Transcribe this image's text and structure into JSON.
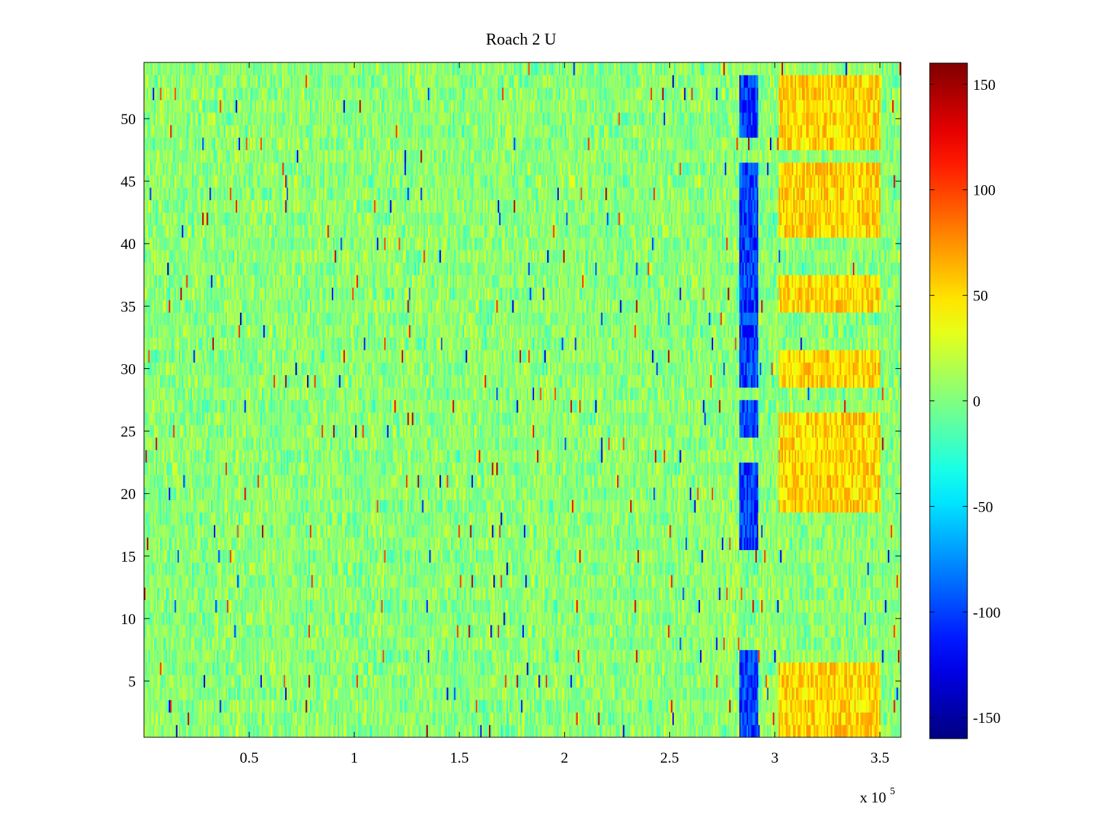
{
  "chart_data": {
    "type": "heatmap",
    "title": "Roach 2 U",
    "xlabel": "",
    "ylabel": "",
    "x_multiplier_label": "x 10",
    "x_multiplier_exponent": "5",
    "xlim": [
      0,
      3.6
    ],
    "ylim": [
      0.5,
      54.5
    ],
    "x_ticks": [
      0.5,
      1,
      1.5,
      2,
      2.5,
      3,
      3.5
    ],
    "x_tick_labels": [
      "0.5",
      "1",
      "1.5",
      "2",
      "2.5",
      "3",
      "3.5"
    ],
    "y_ticks": [
      5,
      10,
      15,
      20,
      25,
      30,
      35,
      40,
      45,
      50
    ],
    "y_tick_labels": [
      "5",
      "10",
      "15",
      "20",
      "25",
      "30",
      "35",
      "40",
      "45",
      "50"
    ],
    "rows": 54,
    "clim": [
      -160,
      160
    ],
    "colormap": "jet",
    "colorbar": {
      "ticks": [
        150,
        100,
        50,
        0,
        -50,
        -100,
        -150
      ],
      "tick_labels": [
        "150",
        "100",
        "50",
        "0",
        "-50",
        "-100",
        "-150"
      ]
    },
    "grid": false,
    "notable_regions": [
      {
        "x_range": [
          2.83,
          2.92
        ],
        "description": "negative band (approx -60 to -150)",
        "rows": [
          1,
          2,
          3,
          4,
          5,
          6,
          7,
          16,
          17,
          18,
          19,
          20,
          21,
          22,
          25,
          26,
          27,
          29,
          30,
          31,
          32,
          33,
          34,
          35,
          36,
          37,
          38,
          39,
          40,
          41,
          42,
          43,
          44,
          45,
          46,
          49,
          50,
          51,
          52,
          53
        ]
      },
      {
        "x_range": [
          3.02,
          3.5
        ],
        "description": "positive band (approx +25 to +80)",
        "rows": [
          1,
          2,
          3,
          4,
          5,
          6,
          19,
          20,
          21,
          22,
          23,
          24,
          25,
          26,
          29,
          30,
          31,
          35,
          36,
          37,
          41,
          42,
          43,
          44,
          45,
          46,
          48,
          49,
          50,
          51,
          52,
          53
        ]
      }
    ]
  }
}
